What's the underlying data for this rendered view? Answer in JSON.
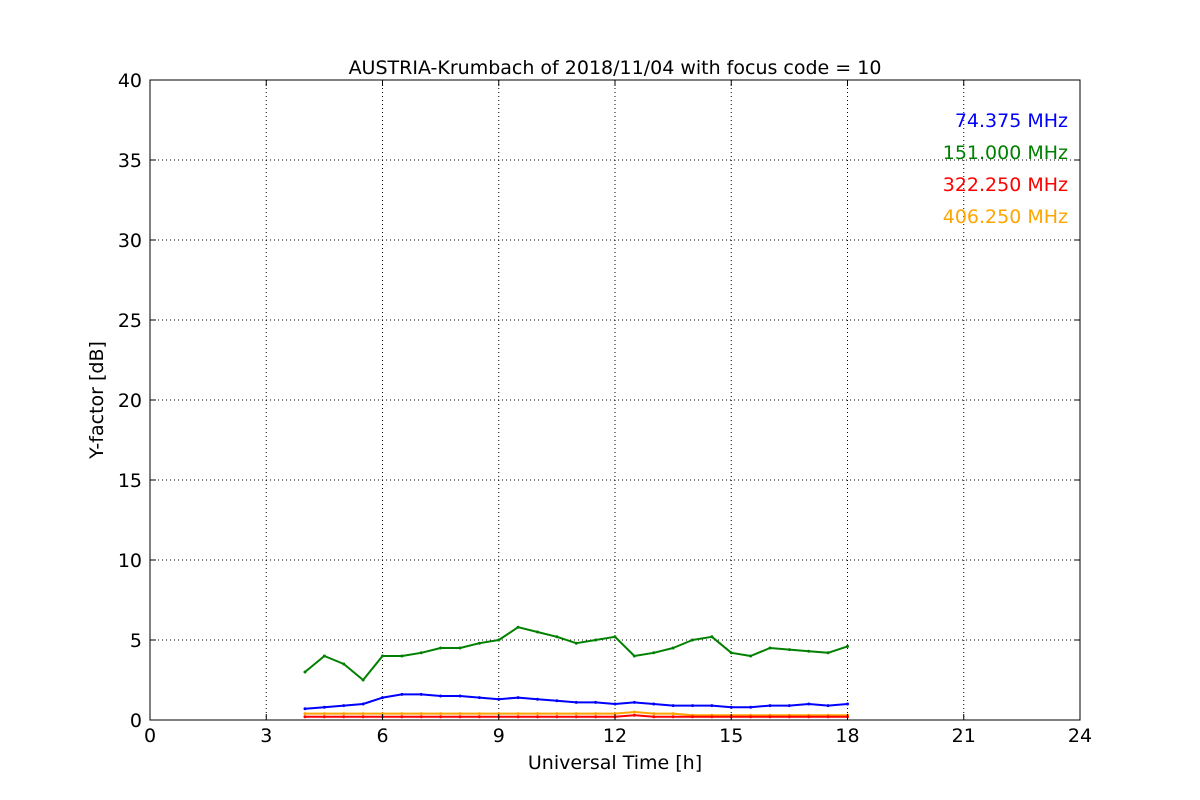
{
  "chart_data": {
    "type": "line",
    "title": "AUSTRIA-Krumbach of 2018/11/04 with focus code = 10",
    "xlabel": "Universal Time [h]",
    "ylabel": "Y-factor [dB]",
    "xlim": [
      0,
      24
    ],
    "ylim": [
      0,
      40
    ],
    "x_ticks": [
      0,
      3,
      6,
      9,
      12,
      15,
      18,
      21,
      24
    ],
    "y_ticks": [
      0,
      5,
      10,
      15,
      20,
      25,
      30,
      35,
      40
    ],
    "grid": true,
    "legend_position": "top-right",
    "series": [
      {
        "name": "74.375 MHz",
        "color": "#0000ff",
        "x": [
          4.0,
          4.5,
          5.0,
          5.5,
          6.0,
          6.5,
          7.0,
          7.5,
          8.0,
          8.5,
          9.0,
          9.5,
          10.0,
          10.5,
          11.0,
          11.5,
          12.0,
          12.5,
          13.0,
          13.5,
          14.0,
          14.5,
          15.0,
          15.5,
          16.0,
          16.5,
          17.0,
          17.5,
          18.0
        ],
        "values": [
          0.7,
          0.8,
          0.9,
          1.0,
          1.4,
          1.6,
          1.6,
          1.5,
          1.5,
          1.4,
          1.3,
          1.4,
          1.3,
          1.2,
          1.1,
          1.1,
          1.0,
          1.1,
          1.0,
          0.9,
          0.9,
          0.9,
          0.8,
          0.8,
          0.9,
          0.9,
          1.0,
          0.9,
          1.0
        ]
      },
      {
        "name": "151.000 MHz",
        "color": "#008000",
        "x": [
          4.0,
          4.5,
          5.0,
          5.5,
          6.0,
          6.5,
          7.0,
          7.5,
          8.0,
          8.5,
          9.0,
          9.5,
          10.0,
          10.5,
          11.0,
          11.5,
          12.0,
          12.5,
          13.0,
          13.5,
          14.0,
          14.5,
          15.0,
          15.5,
          16.0,
          16.5,
          17.0,
          17.5,
          18.0
        ],
        "values": [
          3.0,
          4.0,
          3.5,
          2.5,
          4.0,
          4.0,
          4.2,
          4.5,
          4.5,
          4.8,
          5.0,
          5.8,
          5.5,
          5.2,
          4.8,
          5.0,
          5.2,
          4.0,
          4.2,
          4.5,
          5.0,
          5.2,
          4.2,
          4.0,
          4.5,
          4.4,
          4.3,
          4.2,
          4.6
        ]
      },
      {
        "name": "322.250 MHz",
        "color": "#ff0000",
        "x": [
          4.0,
          4.5,
          5.0,
          5.5,
          6.0,
          6.5,
          7.0,
          7.5,
          8.0,
          8.5,
          9.0,
          9.5,
          10.0,
          10.5,
          11.0,
          11.5,
          12.0,
          12.5,
          13.0,
          13.5,
          14.0,
          14.5,
          15.0,
          15.5,
          16.0,
          16.5,
          17.0,
          17.5,
          18.0
        ],
        "values": [
          0.2,
          0.2,
          0.2,
          0.2,
          0.2,
          0.2,
          0.2,
          0.2,
          0.2,
          0.2,
          0.2,
          0.2,
          0.2,
          0.2,
          0.2,
          0.2,
          0.2,
          0.3,
          0.2,
          0.2,
          0.2,
          0.2,
          0.2,
          0.2,
          0.2,
          0.2,
          0.2,
          0.2,
          0.2
        ]
      },
      {
        "name": "406.250 MHz",
        "color": "#ffa500",
        "x": [
          4.0,
          4.5,
          5.0,
          5.5,
          6.0,
          6.5,
          7.0,
          7.5,
          8.0,
          8.5,
          9.0,
          9.5,
          10.0,
          10.5,
          11.0,
          11.5,
          12.0,
          12.5,
          13.0,
          13.5,
          14.0,
          14.5,
          15.0,
          15.5,
          16.0,
          16.5,
          17.0,
          17.5,
          18.0
        ],
        "values": [
          0.4,
          0.4,
          0.4,
          0.4,
          0.4,
          0.4,
          0.4,
          0.4,
          0.4,
          0.4,
          0.4,
          0.4,
          0.4,
          0.4,
          0.4,
          0.4,
          0.4,
          0.5,
          0.4,
          0.4,
          0.3,
          0.3,
          0.3,
          0.3,
          0.3,
          0.3,
          0.3,
          0.3,
          0.3
        ]
      }
    ]
  }
}
